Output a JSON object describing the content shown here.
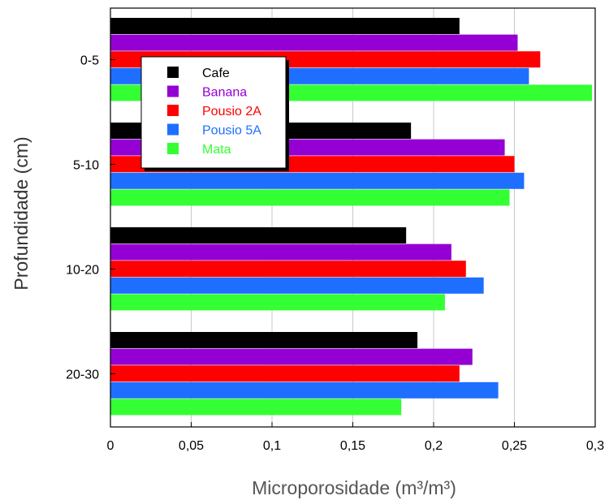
{
  "chart_data": {
    "type": "bar",
    "orientation": "horizontal",
    "categories": [
      "0-5",
      "5-10",
      "10-20",
      "20-30"
    ],
    "series": [
      {
        "name": "Cafe",
        "color": "#000000",
        "text_color": "#000000",
        "values": [
          0.216,
          0.186,
          0.183,
          0.19
        ]
      },
      {
        "name": "Banana",
        "color": "#9400d3",
        "text_color": "#9400d3",
        "values": [
          0.252,
          0.244,
          0.211,
          0.224
        ]
      },
      {
        "name": "Pousio 2A",
        "color": "#ff0000",
        "text_color": "#ff0000",
        "values": [
          0.266,
          0.25,
          0.22,
          0.216
        ]
      },
      {
        "name": "Pousio 5A",
        "color": "#1e6fff",
        "text_color": "#1e6fff",
        "values": [
          0.259,
          0.256,
          0.231,
          0.24
        ]
      },
      {
        "name": "Mata",
        "color": "#33ff33",
        "text_color": "#33ff33",
        "values": [
          0.298,
          0.247,
          0.207,
          0.18
        ]
      }
    ],
    "xlabel": "Microporosidade (m³/m³)",
    "ylabel": "Profundidade (cm)",
    "xlim": [
      0,
      0.3
    ],
    "xticks": [
      "0",
      "0,05",
      "0,1",
      "0,15",
      "0,2",
      "0,25",
      "0,3"
    ],
    "grid": "vertical",
    "legend_position": "top-left"
  }
}
